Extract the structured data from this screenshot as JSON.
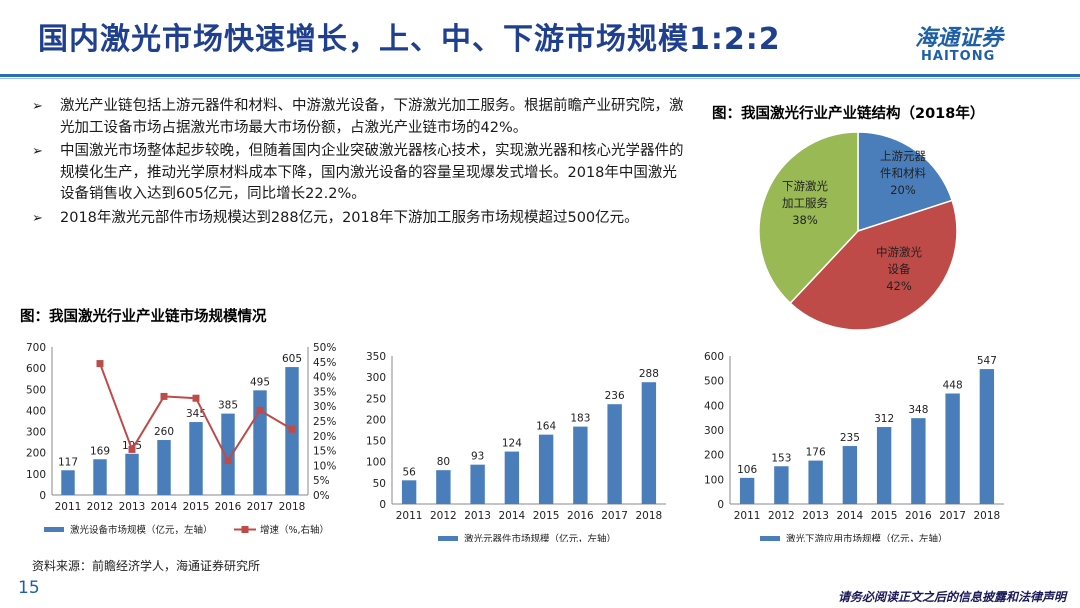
{
  "slide": {
    "title": "国内激光市场快速增长，上、中、下游市场规模1:2:2",
    "logo_cn": "海通证券",
    "logo_en": "HAITONG",
    "page_number": "15",
    "source": "资料来源：前瞻经济学人，海通证券研究所",
    "disclaimer": "请务必阅读正文之后的信息披露和法律声明",
    "bullet_mark": "➢",
    "bullets": [
      "激光产业链包括上游元器件和材料、中游激光设备，下游激光加工服务。根据前瞻产业研究院，激光加工设备市场占据激光市场最大市场份额，占激光产业链市场的42%。",
      "中国激光市场整体起步较晚，但随着国内企业突破激光器核心技术，实现激光器和核心光学器件的规模化生产，推动光学原材料成本下降，国内激光设备的容量呈现爆发式增长。2018年中国激光设备销售收入达到605亿元，同比增长22.2%。",
      "2018年激光元部件市场规模达到288亿元，2018年下游加工服务市场规模超过500亿元。"
    ],
    "pie_title": "图：我国激光行业产业链结构（2018年）",
    "bar_title": "图：我国激光行业产业链市场规模情况",
    "colors": {
      "blue": "#4a7ebb",
      "red": "#be4b48",
      "green": "#98b954",
      "line": "#be4b48"
    }
  },
  "chart_data": [
    {
      "type": "pie",
      "title": "图：我国激光行业产业链结构（2018年）",
      "slices": [
        {
          "label_lines": [
            "上游元器",
            "件和材料",
            "20%"
          ],
          "value": 20,
          "color": "#4a7ebb"
        },
        {
          "label_lines": [
            "中游激光",
            "设备",
            "42%"
          ],
          "value": 42,
          "color": "#be4b48"
        },
        {
          "label_lines": [
            "下游激光",
            "加工服务",
            "38%"
          ],
          "value": 38,
          "color": "#98b954"
        }
      ]
    },
    {
      "type": "bar",
      "categories": [
        "2011",
        "2012",
        "2013",
        "2014",
        "2015",
        "2016",
        "2017",
        "2018"
      ],
      "values": [
        117,
        169,
        195,
        260,
        345,
        385,
        495,
        605
      ],
      "ylim": [
        0,
        700
      ],
      "yticks": [
        "0",
        "100",
        "200",
        "300",
        "400",
        "500",
        "600",
        "700"
      ],
      "y2lim": [
        0,
        50
      ],
      "y2ticks": [
        "0%",
        "5%",
        "10%",
        "15%",
        "20%",
        "25%",
        "30%",
        "35%",
        "40%",
        "45%",
        "50%"
      ],
      "line_values": [
        null,
        44.4,
        15.4,
        33.3,
        32.7,
        11.6,
        28.6,
        22.2
      ],
      "legend": [
        "激光设备市场规模（亿元，左轴）",
        "增速（%,右轴）"
      ]
    },
    {
      "type": "bar",
      "categories": [
        "2011",
        "2012",
        "2013",
        "2014",
        "2015",
        "2016",
        "2017",
        "2018"
      ],
      "values": [
        56,
        80,
        93,
        124,
        164,
        183,
        236,
        288
      ],
      "ylim": [
        0,
        350
      ],
      "yticks": [
        "0",
        "50",
        "100",
        "150",
        "200",
        "250",
        "300",
        "350"
      ],
      "legend": [
        "激光元器件市场规模（亿元，左轴）"
      ]
    },
    {
      "type": "bar",
      "categories": [
        "2011",
        "2012",
        "2013",
        "2014",
        "2015",
        "2016",
        "2017",
        "2018"
      ],
      "values": [
        106,
        153,
        176,
        235,
        312,
        348,
        448,
        547
      ],
      "ylim": [
        0,
        600
      ],
      "yticks": [
        "0",
        "100",
        "200",
        "300",
        "400",
        "500",
        "600"
      ],
      "legend": [
        "激光下游应用市场规模（亿元，左轴）"
      ]
    }
  ]
}
